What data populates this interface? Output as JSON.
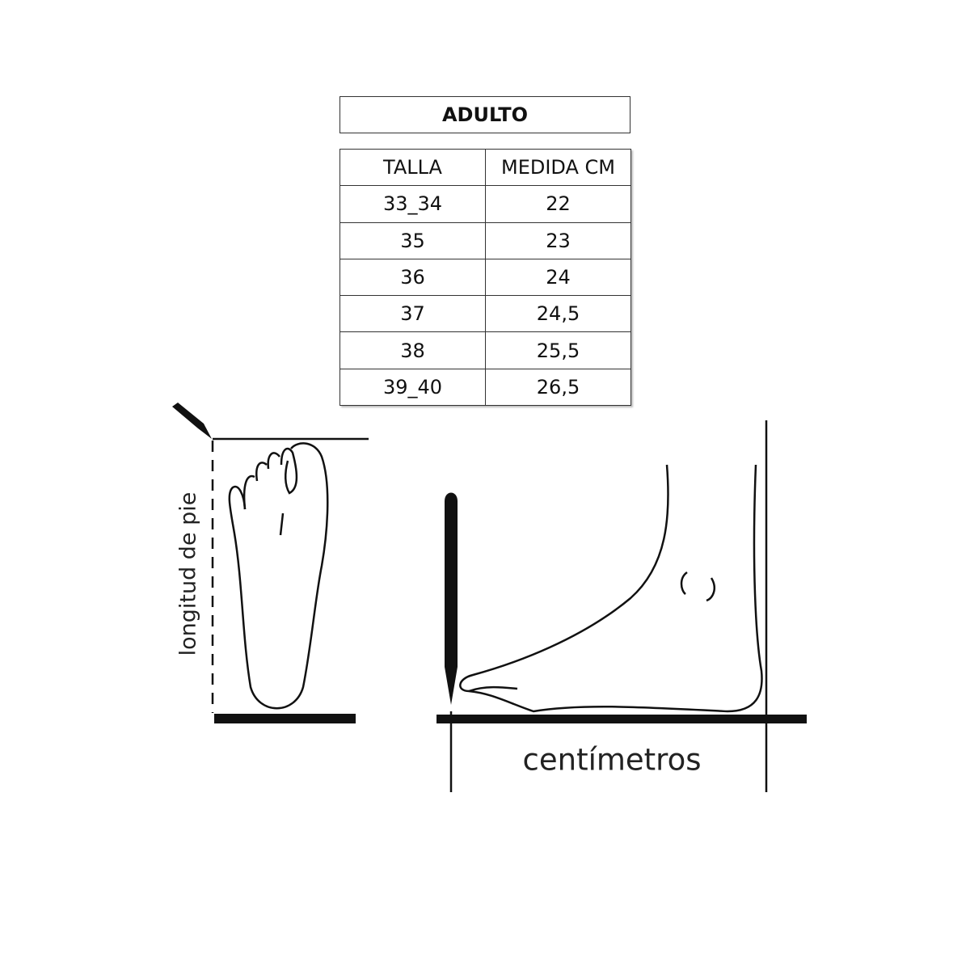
{
  "table": {
    "title": "ADULTO",
    "headers": [
      "TALLA",
      "MEDIDA CM"
    ],
    "rows": [
      [
        "33_34",
        "22"
      ],
      [
        "35",
        "23"
      ],
      [
        "36",
        "24"
      ],
      [
        "37",
        "24,5"
      ],
      [
        "38",
        "25,5"
      ],
      [
        "39_40",
        "26,5"
      ]
    ]
  },
  "illustration": {
    "top_view_label": "longitud de pie",
    "side_view_label": "centímetros"
  }
}
